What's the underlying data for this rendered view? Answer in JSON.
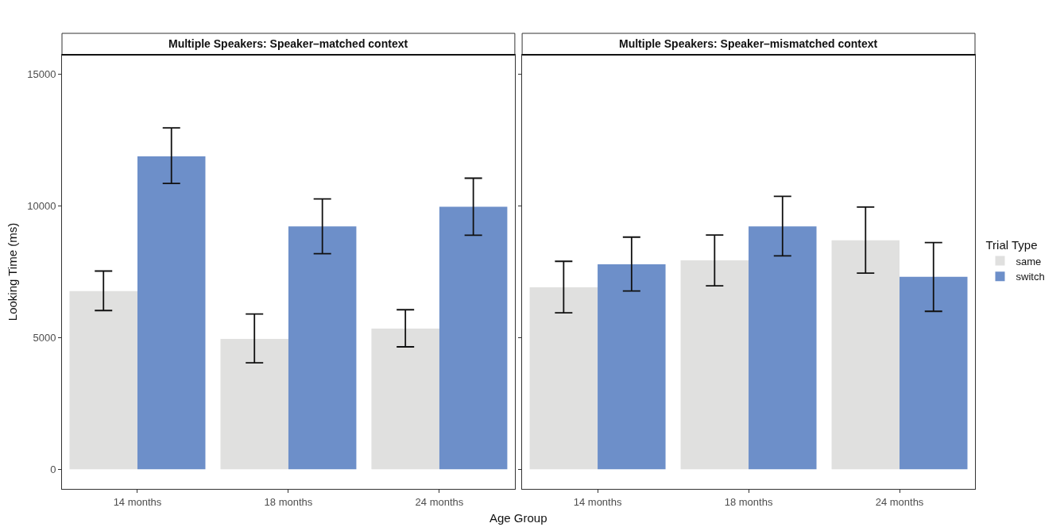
{
  "chart_data": [
    {
      "type": "bar",
      "title": "Multiple Speakers: Speaker–matched context",
      "xlabel": "Age Group",
      "ylabel": "Looking Time (ms)",
      "legend_title": "Trial Type",
      "legend": "right",
      "grid": false,
      "categories": [
        "14 months",
        "18 months",
        "24 months"
      ],
      "ylim": [
        -750,
        15750
      ],
      "yticks": [
        0,
        5000,
        10000,
        15000
      ],
      "series": [
        {
          "name": "same",
          "color": "#e0e0df",
          "values": [
            6770,
            4950,
            5340
          ],
          "errors": [
            [
              6030,
              7530
            ],
            [
              4040,
              5900
            ],
            [
              4650,
              6060
            ]
          ]
        },
        {
          "name": "switch",
          "color": "#6d8fc9",
          "values": [
            11890,
            9230,
            9970
          ],
          "errors": [
            [
              10860,
              12970
            ],
            [
              8190,
              10270
            ],
            [
              8890,
              11060
            ]
          ]
        }
      ]
    },
    {
      "type": "bar",
      "title": "Multiple Speakers: Speaker–mismatched context",
      "grid": false,
      "tick_labels": "x",
      "categories": [
        "14 months",
        "18 months",
        "24 months"
      ],
      "ylim": [
        -750,
        15750
      ],
      "yticks": [
        0,
        5000,
        10000,
        15000
      ],
      "series": [
        {
          "name": "same",
          "color": "#e0e0df",
          "values": [
            6910,
            7940,
            8700
          ],
          "errors": [
            [
              5940,
              7900
            ],
            [
              6970,
              8900
            ],
            [
              7450,
              9960
            ]
          ]
        },
        {
          "name": "switch",
          "color": "#6d8fc9",
          "values": [
            7790,
            9230,
            7310
          ],
          "errors": [
            [
              6770,
              8820
            ],
            [
              8110,
              10370
            ],
            [
              6000,
              8610
            ]
          ]
        }
      ]
    }
  ]
}
